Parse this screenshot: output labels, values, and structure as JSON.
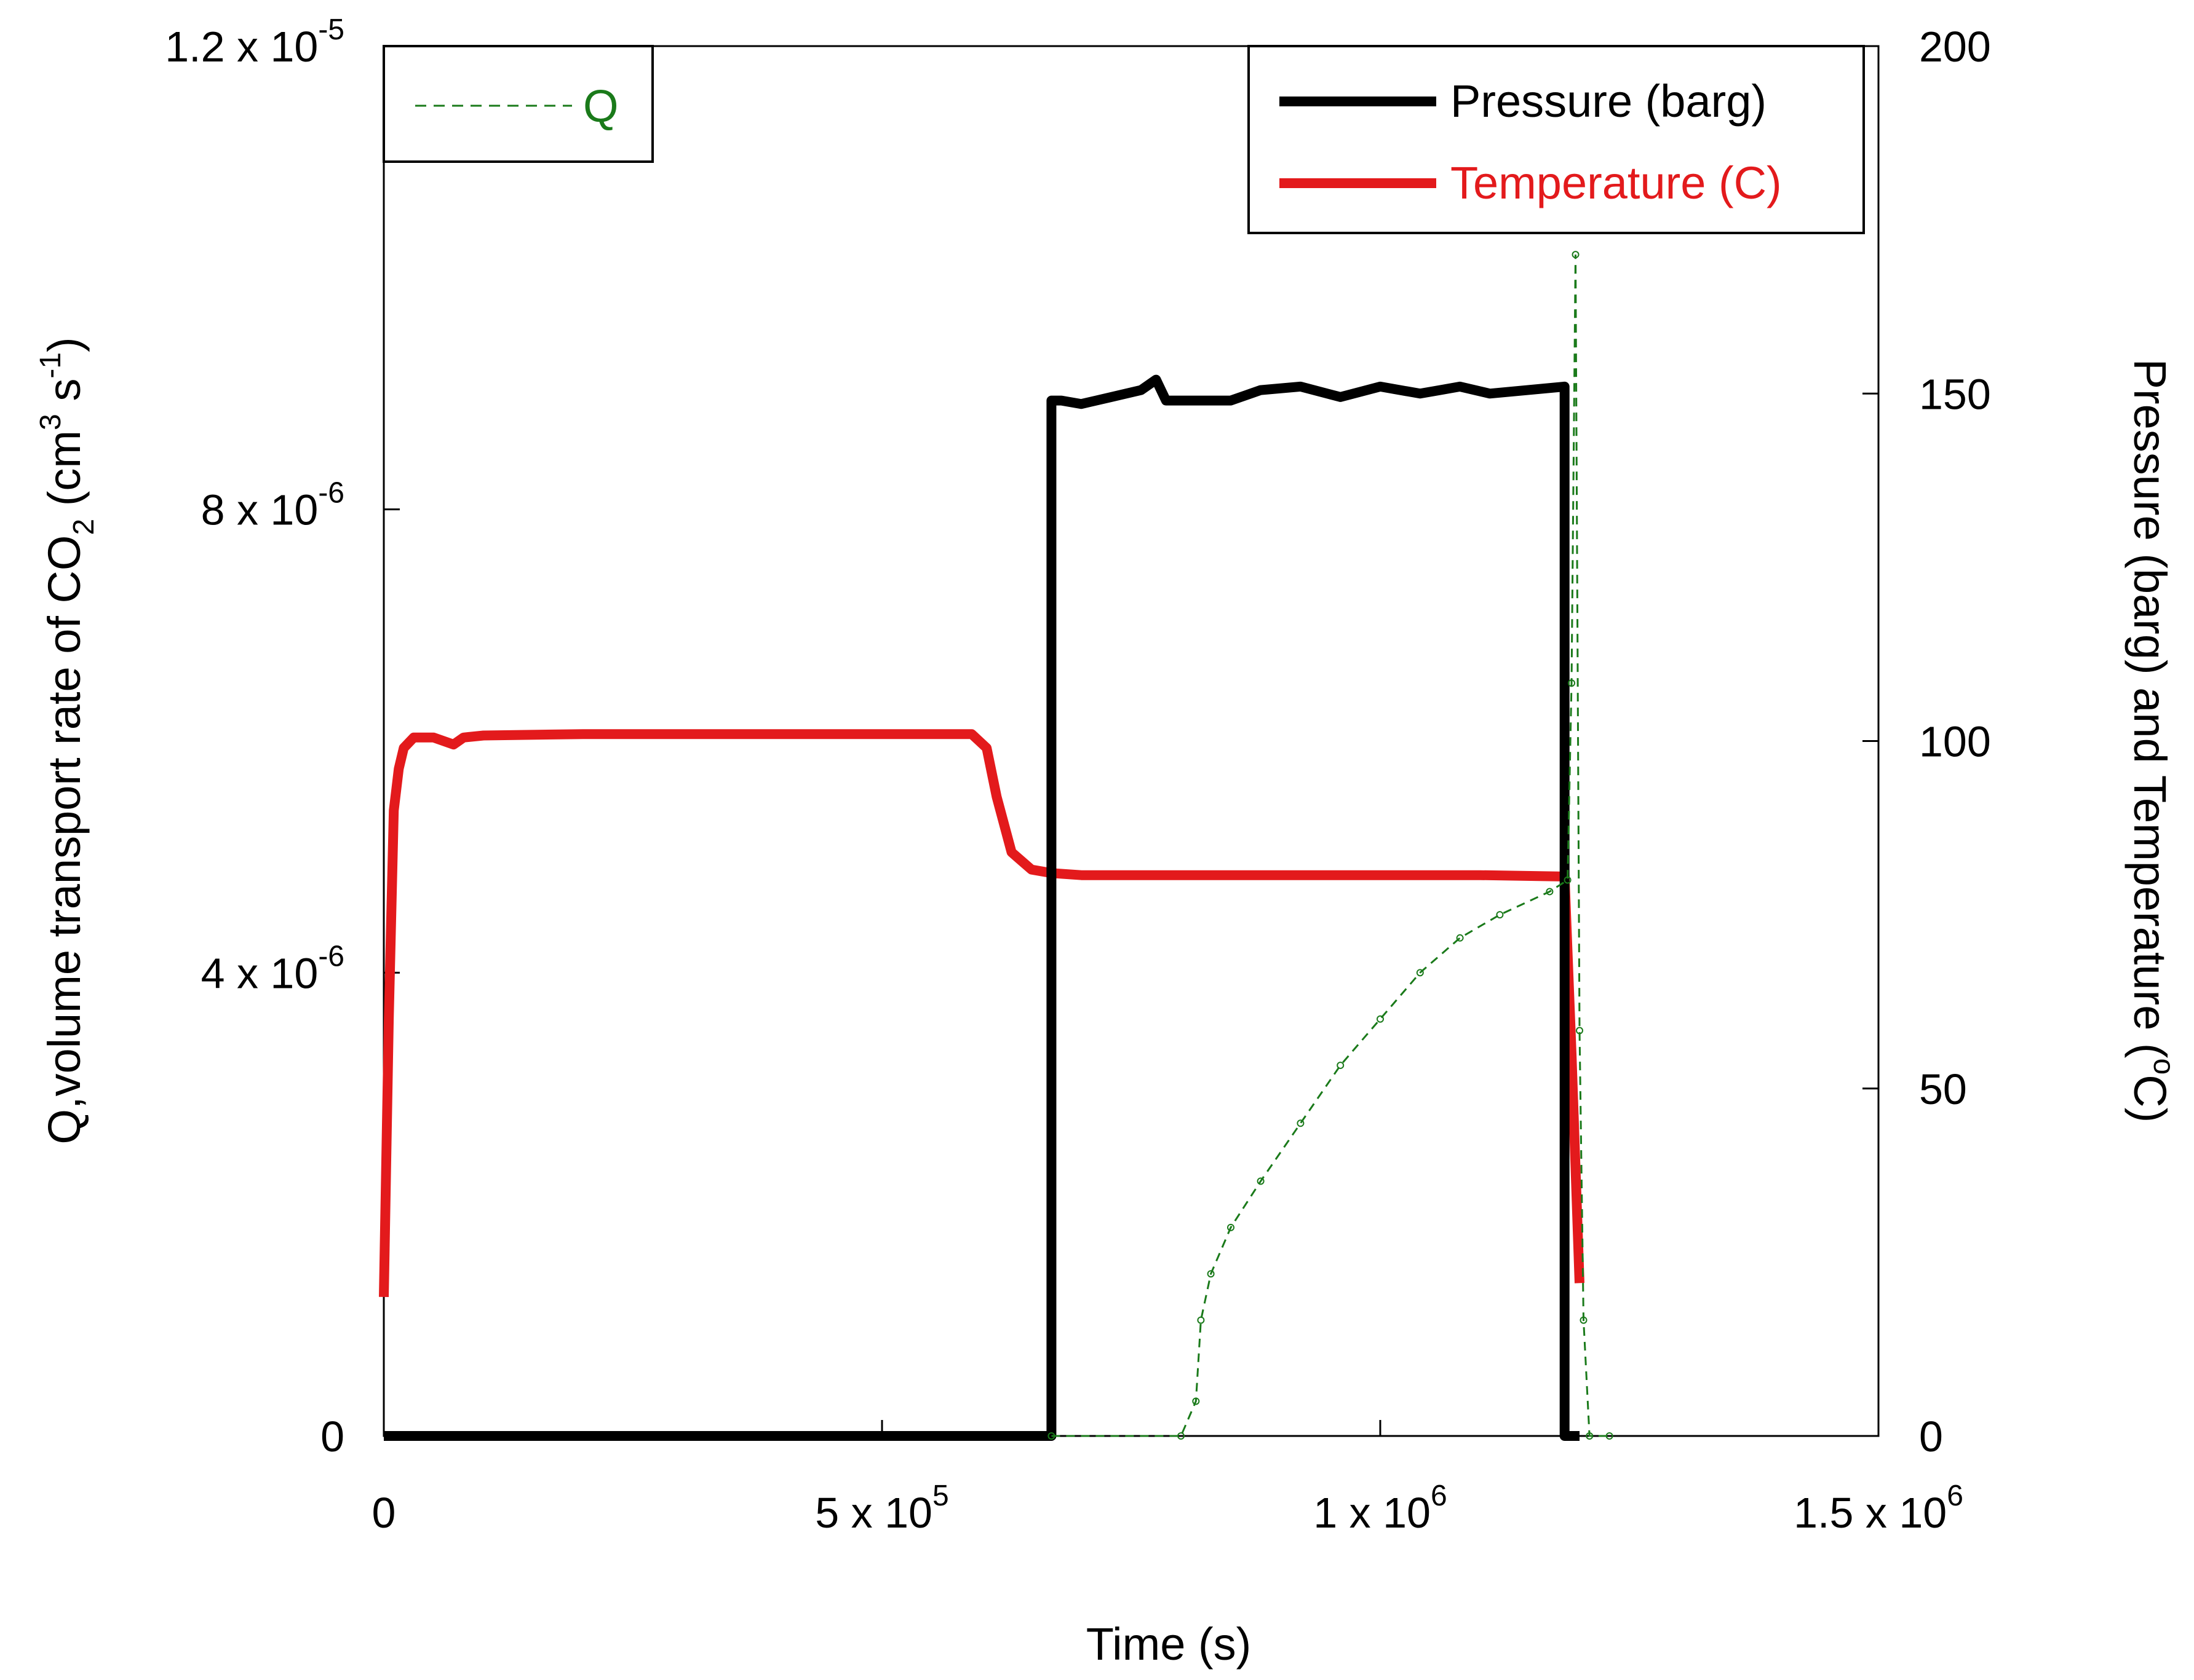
{
  "chart_data": {
    "type": "line",
    "x_axis": {
      "label": "Time (s)",
      "range": [
        0,
        1500000
      ],
      "ticks": [
        {
          "value": 0,
          "label": "0"
        },
        {
          "value": 500000,
          "label": "5 x 10",
          "exp": "5"
        },
        {
          "value": 1000000,
          "label": "1 x 10",
          "exp": "6"
        },
        {
          "value": 1500000,
          "label": "1.5 x 10",
          "exp": "6"
        }
      ]
    },
    "y_left": {
      "label_pre": "Q,volume transport rate of CO",
      "label_sub": "2",
      "label_mid": " (cm",
      "label_sup1": "3",
      "label_mid2": " s",
      "label_sup2": "-1",
      "label_post": ")",
      "range": [
        0,
        1.2e-05
      ],
      "ticks": [
        {
          "value": 0,
          "label": "0",
          "exp": ""
        },
        {
          "value": 4e-06,
          "label": "4 x 10",
          "exp": "-6"
        },
        {
          "value": 8e-06,
          "label": "8 x 10",
          "exp": "-6"
        },
        {
          "value": 1.2e-05,
          "label": "1.2 x 10",
          "exp": "-5"
        }
      ]
    },
    "y_right": {
      "label_pre": "Pressure (barg) and Temperature (",
      "label_sup": "o",
      "label_post": "C)",
      "range": [
        0,
        200
      ],
      "ticks": [
        {
          "value": 0,
          "label": "0"
        },
        {
          "value": 50,
          "label": "50"
        },
        {
          "value": 100,
          "label": "100"
        },
        {
          "value": 150,
          "label": "150"
        },
        {
          "value": 200,
          "label": "200"
        }
      ]
    },
    "legend_left": {
      "placement": "top-left",
      "entries": [
        {
          "name": "Q",
          "color": "#1a7a1a"
        }
      ]
    },
    "legend_right": {
      "placement": "top-right",
      "entries": [
        {
          "name": "Pressure (barg)",
          "color": "#000000"
        },
        {
          "name": "Temperature (C)",
          "color": "#e31a1c"
        }
      ]
    },
    "series": [
      {
        "name": "Q",
        "axis": "left",
        "color": "#1a7a1a",
        "style": "dashed-markers",
        "x": [
          670000,
          800000,
          815000,
          820000,
          830000,
          850000,
          880000,
          920000,
          960000,
          1000000,
          1040000,
          1080000,
          1120000,
          1170000,
          1188000,
          1192000,
          1196000,
          1200000,
          1204000,
          1210000,
          1230000
        ],
        "y": [
          0,
          0,
          3e-07,
          1e-06,
          1.4e-06,
          1.8e-06,
          2.2e-06,
          2.7e-06,
          3.2e-06,
          3.6e-06,
          4e-06,
          4.3e-06,
          4.5e-06,
          4.7e-06,
          4.8e-06,
          6.5e-06,
          1.02e-05,
          3.5e-06,
          1e-06,
          0,
          0
        ]
      },
      {
        "name": "Pressure (barg)",
        "axis": "right",
        "color": "#000000",
        "style": "thick",
        "x": [
          0,
          670000,
          670000,
          680000,
          700000,
          730000,
          760000,
          775000,
          785000,
          800000,
          850000,
          880000,
          920000,
          960000,
          1000000,
          1040000,
          1060000,
          1080000,
          1110000,
          1185000,
          1185000,
          1200000
        ],
        "y": [
          0,
          0,
          149,
          149,
          148.5,
          149.5,
          150.5,
          152,
          149,
          149,
          149,
          150.5,
          151,
          149.5,
          151,
          150,
          150.5,
          151,
          150,
          151,
          0,
          0
        ]
      },
      {
        "name": "Temperature (C)",
        "axis": "right",
        "color": "#e31a1c",
        "style": "thick",
        "x": [
          0,
          5000,
          10000,
          15000,
          20000,
          30000,
          50000,
          70000,
          80000,
          100000,
          200000,
          400000,
          590000,
          605000,
          615000,
          630000,
          650000,
          670000,
          700000,
          900000,
          1100000,
          1185000,
          1192000,
          1200000
        ],
        "y": [
          20,
          60,
          90,
          96,
          99,
          100.5,
          100.5,
          99.5,
          100.5,
          100.8,
          101,
          101,
          101,
          99,
          92,
          84,
          81.5,
          81,
          80.7,
          80.7,
          80.7,
          80.5,
          55,
          22
        ]
      }
    ]
  }
}
